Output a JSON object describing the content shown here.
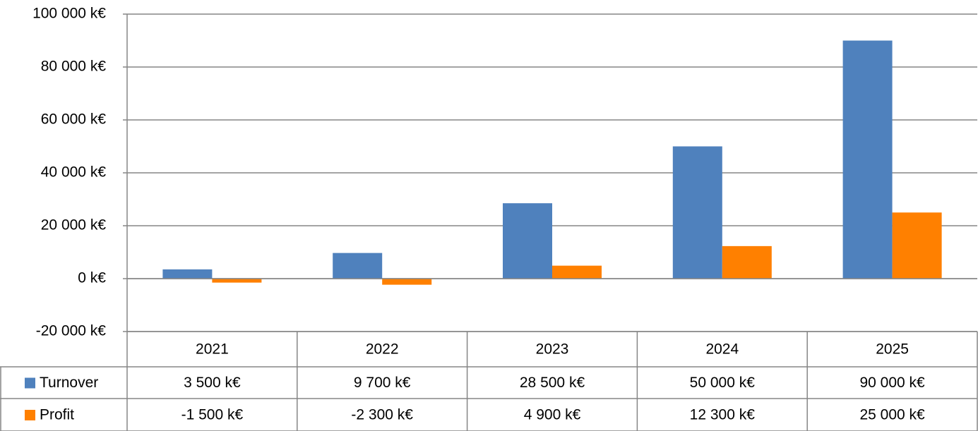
{
  "chart_data": {
    "type": "bar",
    "categories": [
      "2021",
      "2022",
      "2023",
      "2024",
      "2025"
    ],
    "series": [
      {
        "name": "Turnover",
        "color": "#4f81bd",
        "values": [
          3500,
          9700,
          28500,
          50000,
          90000
        ],
        "value_labels": [
          "3 500 k€",
          "9 700 k€",
          "28 500 k€",
          "50 000 k€",
          "90 000 k€"
        ]
      },
      {
        "name": "Profit",
        "color": "#ff8000",
        "values": [
          -1500,
          -2300,
          4900,
          12300,
          25000
        ],
        "value_labels": [
          "-1 500 k€",
          "-2 300 k€",
          "4 900 k€",
          "12 300 k€",
          "25 000 k€"
        ]
      }
    ],
    "ylim": [
      -20000,
      100000
    ],
    "yticks": [
      {
        "value": -20000,
        "label": "-20 000 k€"
      },
      {
        "value": 0,
        "label": "0 k€"
      },
      {
        "value": 20000,
        "label": "20 000 k€"
      },
      {
        "value": 40000,
        "label": "40 000 k€"
      },
      {
        "value": 60000,
        "label": "60 000 k€"
      },
      {
        "value": 80000,
        "label": "80 000 k€"
      },
      {
        "value": 100000,
        "label": "100 000 k€"
      }
    ],
    "grid": true
  }
}
